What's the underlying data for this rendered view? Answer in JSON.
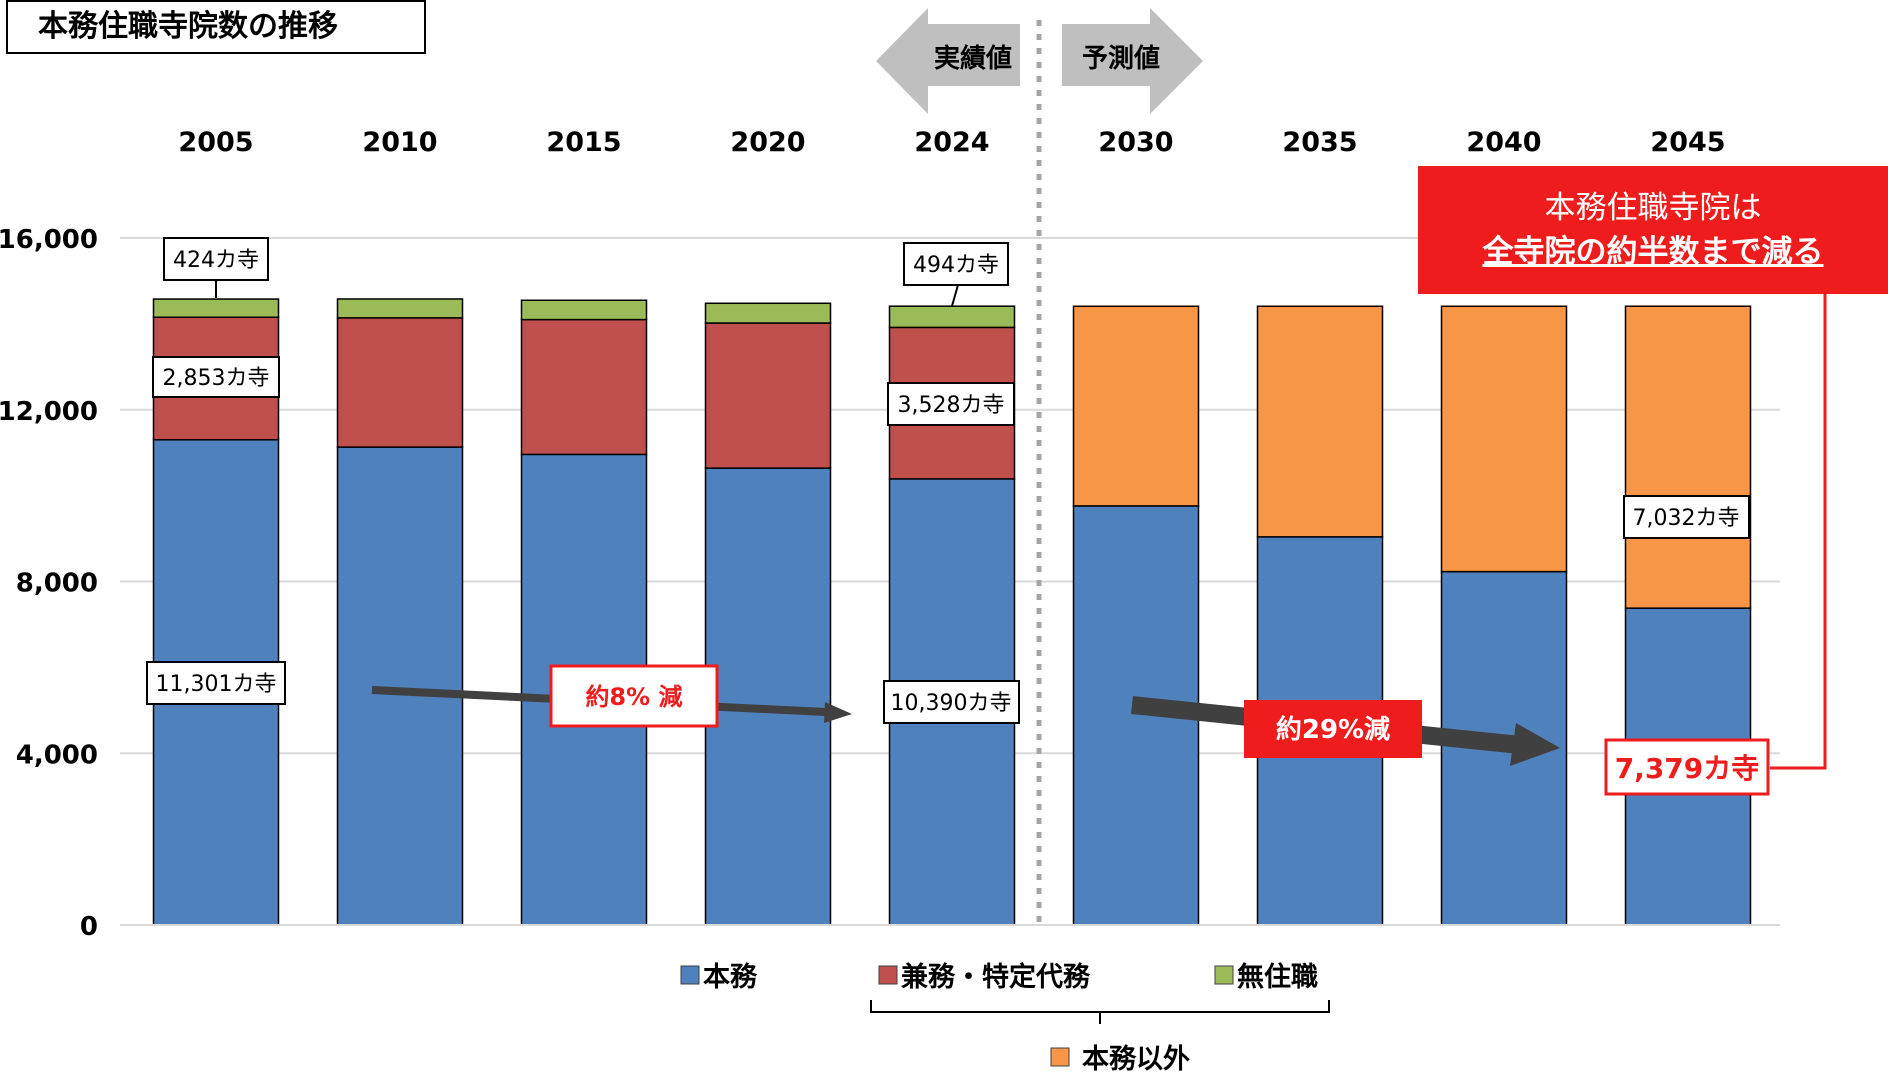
{
  "title": "本務住職寺院数の推移",
  "phase_labels": {
    "actual": "実績値",
    "forecast": "予測値"
  },
  "callout": {
    "line1": "本務住職寺院は",
    "line2": "全寺院の約半数まで減る"
  },
  "colors": {
    "honmu": "#4f81bd",
    "kenmu": "#c0504d",
    "mujushoku": "#9bbb59",
    "honmu_igai": "#f79646",
    "accent_red": "#ee1c1c",
    "arrow_gray": "#404040"
  },
  "annotations": {
    "decrease_actual": "約8% 減",
    "decrease_forecast": "約29%減",
    "label_424": "424カ寺",
    "label_2853": "2,853カ寺",
    "label_11301": "11,301カ寺",
    "label_494": "494カ寺",
    "label_3528": "3,528カ寺",
    "label_10390": "10,390カ寺",
    "label_7032": "7,032カ寺",
    "label_7379": "7,379カ寺"
  },
  "legend": {
    "honmu": "本務",
    "kenmu": "兼務・特定代務",
    "mujushoku": "無住職",
    "honmu_igai": "本務以外"
  },
  "chart_data": {
    "type": "bar",
    "stacked": true,
    "title": "本務住職寺院数の推移",
    "categories": [
      "2005",
      "2010",
      "2015",
      "2020",
      "2024",
      "2030",
      "2035",
      "2040",
      "2045"
    ],
    "series": [
      {
        "name": "本務",
        "color": "#4f81bd",
        "values": [
          11301,
          11130,
          10960,
          10640,
          10390,
          9760,
          9040,
          8230,
          7379
        ]
      },
      {
        "name": "兼務・特定代務",
        "color": "#c0504d",
        "values": [
          2853,
          3010,
          3140,
          3380,
          3528,
          null,
          null,
          null,
          null
        ]
      },
      {
        "name": "無住職",
        "color": "#9bbb59",
        "values": [
          424,
          440,
          450,
          460,
          494,
          null,
          null,
          null,
          null
        ]
      },
      {
        "name": "本務以外",
        "color": "#f79646",
        "values": [
          null,
          null,
          null,
          null,
          null,
          4650,
          5370,
          6180,
          7032
        ]
      }
    ],
    "ylim": [
      0,
      16000
    ],
    "yticks": [
      "0",
      "4,000",
      "8,000",
      "12,000",
      "16,000"
    ],
    "grid": true,
    "legend_position": "bottom"
  }
}
